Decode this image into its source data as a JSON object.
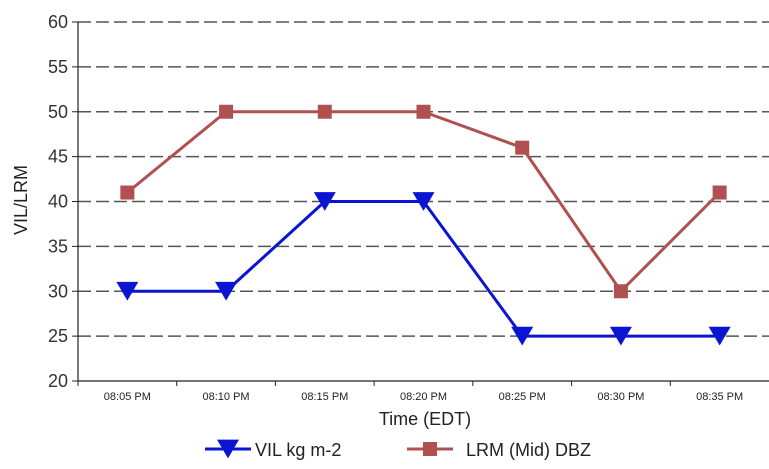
{
  "chart_data": {
    "type": "line",
    "title": "",
    "xlabel": "Time (EDT)",
    "ylabel": "VIL/LRM",
    "categories": [
      "08:05 PM",
      "08:10 PM",
      "08:15 PM",
      "08:20 PM",
      "08:25 PM",
      "08:30 PM",
      "08:35 PM"
    ],
    "y_ticks": [
      "20",
      "25",
      "30",
      "35",
      "40",
      "45",
      "50",
      "55",
      "60"
    ],
    "ylim": [
      20,
      60
    ],
    "grid": "horizontal dashed",
    "legend_position": "bottom",
    "series": [
      {
        "name": "VIL kg m-2",
        "values": [
          30,
          30,
          40,
          40,
          25,
          25,
          25
        ],
        "color": "#0a14d2",
        "marker": "triangle-down"
      },
      {
        "name": "LRM (Mid) DBZ",
        "values": [
          41,
          50,
          50,
          50,
          46,
          30,
          41
        ],
        "color": "#b05050",
        "marker": "square"
      }
    ]
  }
}
